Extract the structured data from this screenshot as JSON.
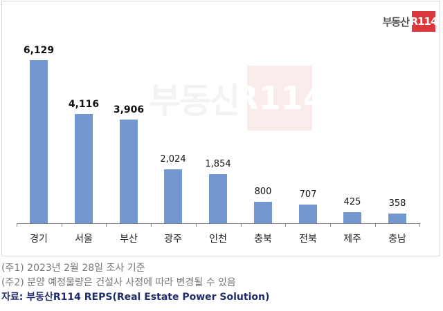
{
  "logo": {
    "text": "부동산",
    "box": "R114"
  },
  "watermark": {
    "text": "부동산",
    "box": "R114"
  },
  "chart_data": {
    "type": "bar",
    "title": "",
    "xlabel": "",
    "ylabel": "",
    "categories": [
      "경기",
      "서울",
      "부산",
      "광주",
      "인천",
      "충북",
      "전북",
      "제주",
      "충남"
    ],
    "values": [
      6129,
      4116,
      3906,
      2024,
      1854,
      800,
      707,
      425,
      358
    ],
    "value_labels": [
      "6,129",
      "4,116",
      "3,906",
      "2,024",
      "1,854",
      "800",
      "707",
      "425",
      "358"
    ],
    "bold_labels": [
      true,
      true,
      true,
      false,
      false,
      false,
      false,
      false,
      false
    ],
    "bar_color": "#7298cf",
    "grid": false,
    "legend": null
  },
  "notes": {
    "note1": "(주1) 2023년 2월 28일 조사 기준",
    "note2": "(주2) 분양 예정물량은 건설사 사정에 따라 변경될 수 있음",
    "source": "자료: 부동산R114 REPS(Real Estate Power Solution)"
  }
}
